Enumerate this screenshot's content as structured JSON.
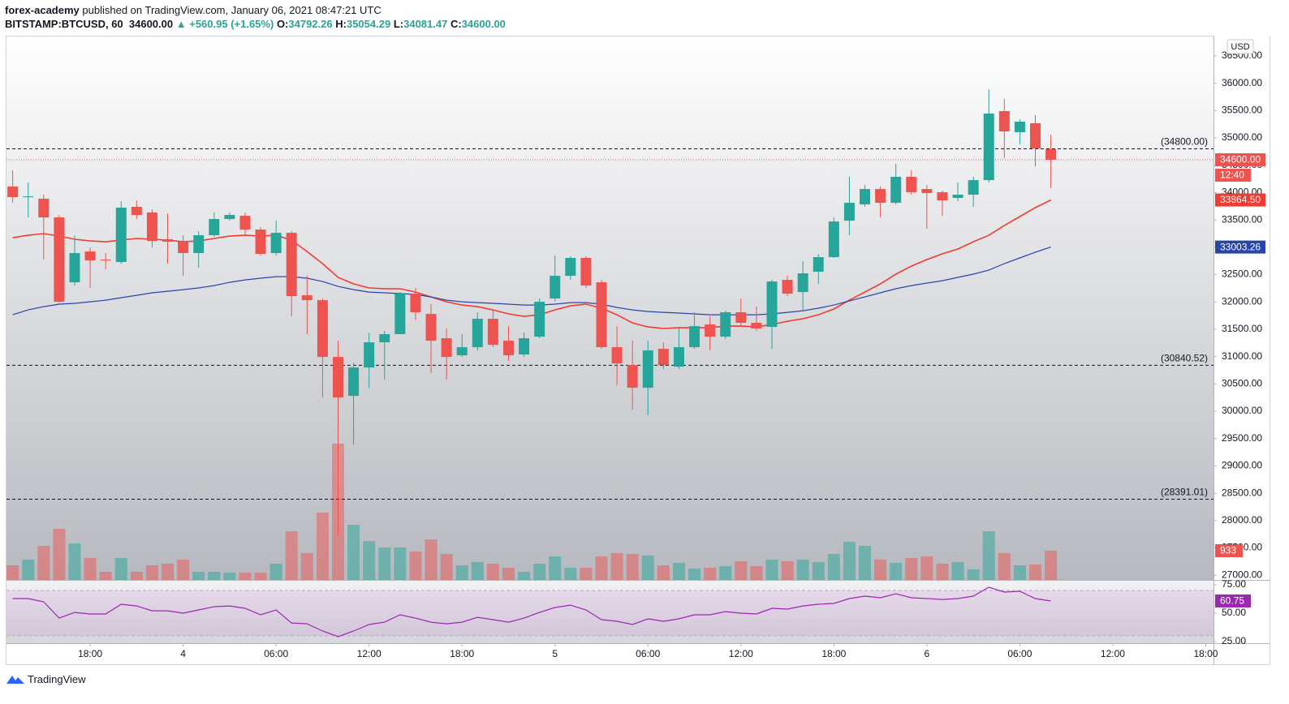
{
  "header": {
    "author": "forex-academy",
    "published": "published on TradingView.com, January 06, 2021 08:47:21 UTC"
  },
  "footer": {
    "brand": "TradingView"
  },
  "chart_data": {
    "type": "candlestick",
    "symbol": "BITSTAMP:BTCUSD, 60",
    "legend": {
      "last": "34600.00",
      "change": "▲ +560.95 (+1.65%)",
      "items": [
        {
          "key": "O:",
          "value": "34792.26"
        },
        {
          "key": "H:",
          "value": "35054.29"
        },
        {
          "key": "L:",
          "value": "34081.47"
        },
        {
          "key": "C:",
          "value": "34600.00"
        }
      ]
    },
    "currency": "USD",
    "up_color": "#26a69a",
    "down_color": "#ef5350",
    "xlim": [
      -0.4,
      77.5
    ],
    "xticks": [
      {
        "value": 5,
        "label": "18:00"
      },
      {
        "value": 11,
        "label": "4"
      },
      {
        "value": 17,
        "label": "06:00"
      },
      {
        "value": 23,
        "label": "12:00"
      },
      {
        "value": 29,
        "label": "18:00"
      },
      {
        "value": 35,
        "label": "5"
      },
      {
        "value": 41,
        "label": "06:00"
      },
      {
        "value": 47,
        "label": "12:00"
      },
      {
        "value": 53,
        "label": "18:00"
      },
      {
        "value": 59,
        "label": "6"
      },
      {
        "value": 65,
        "label": "06:00"
      },
      {
        "value": 71,
        "label": "12:00"
      },
      {
        "value": 77,
        "label": "18:00"
      }
    ],
    "ylim": [
      26914,
      36855
    ],
    "yticks": [
      {
        "value": 27000,
        "label": "27000.00"
      },
      {
        "value": 27500,
        "label": "27500.00"
      },
      {
        "value": 28000,
        "label": "28000.00"
      },
      {
        "value": 28500,
        "label": "28500.00"
      },
      {
        "value": 29000,
        "label": "29000.00"
      },
      {
        "value": 29500,
        "label": "29500.00"
      },
      {
        "value": 30000,
        "label": "30000.00"
      },
      {
        "value": 30500,
        "label": "30500.00"
      },
      {
        "value": 31000,
        "label": "31000.00"
      },
      {
        "value": 31500,
        "label": "31500.00"
      },
      {
        "value": 32000,
        "label": "32000.00"
      },
      {
        "value": 32500,
        "label": "32500.00"
      },
      {
        "value": 33000,
        "label": "33000.00"
      },
      {
        "value": 33500,
        "label": "33500.00"
      },
      {
        "value": 34000,
        "label": "34000.00"
      },
      {
        "value": 34500,
        "label": "34500.00"
      },
      {
        "value": 35000,
        "label": "35000.00"
      },
      {
        "value": 35500,
        "label": "35500.00"
      },
      {
        "value": 36000,
        "label": "36000.00"
      },
      {
        "value": 36500,
        "label": "36500.00"
      }
    ],
    "open": [
      34110,
      33920,
      33887,
      33546,
      32358,
      32922,
      32774,
      32730,
      33739,
      33635,
      33145,
      33100,
      32893,
      33219,
      33516,
      33575,
      33323,
      32893,
      33264,
      32121,
      32032,
      30993,
      30281,
      30800,
      31260,
      31409,
      32151,
      31780,
      31335,
      31023,
      31171,
      31691,
      31290,
      31038,
      31364,
      32062,
      32477,
      32804,
      32358,
      31171,
      30845,
      30429,
      31142,
      30815,
      31171,
      31587,
      31364,
      31810,
      31617,
      31542,
      32403,
      32180,
      32552,
      32819,
      33486,
      33783,
      34065,
      33813,
      34288,
      34065,
      34006,
      33902,
      33961,
      34228,
      35490,
      35104,
      35267,
      34792.26
    ],
    "high": [
      34407,
      34180,
      33961,
      33590,
      33219,
      32997,
      32893,
      33842,
      33857,
      33694,
      33620,
      33219,
      33293,
      33635,
      33635,
      33635,
      33367,
      33486,
      33293,
      32477,
      32062,
      31290,
      30889,
      31438,
      31468,
      32180,
      32255,
      31958,
      31513,
      31409,
      31810,
      31854,
      31557,
      31438,
      32062,
      32848,
      32834,
      32834,
      32403,
      31557,
      31290,
      31290,
      31260,
      31513,
      31810,
      31735,
      31839,
      32062,
      31913,
      32403,
      32477,
      32744,
      32878,
      33546,
      34288,
      34139,
      34110,
      34525,
      34407,
      34139,
      34036,
      34184,
      34288,
      35890,
      35712,
      35341,
      35416,
      35054.29
    ],
    "low": [
      33813,
      33545,
      32774,
      31987,
      32299,
      32255,
      32596,
      32700,
      33516,
      32997,
      32700,
      32477,
      32626,
      33190,
      33486,
      33219,
      32848,
      32848,
      31735,
      31409,
      30251,
      27728,
      29390,
      30429,
      30578,
      31409,
      31661,
      30696,
      30578,
      30993,
      31112,
      31171,
      30919,
      30993,
      31335,
      32002,
      32403,
      32255,
      31142,
      30474,
      30029,
      29925,
      30771,
      30771,
      31142,
      31112,
      31320,
      31557,
      31468,
      31142,
      32106,
      31854,
      32329,
      32804,
      33219,
      33739,
      33546,
      33783,
      33961,
      33338,
      33575,
      33842,
      33739,
      34184,
      34629,
      34881,
      34481,
      34081.47
    ],
    "close": [
      33917,
      33930,
      33546,
      32002,
      32893,
      32759,
      32760,
      33724,
      33590,
      33115,
      33100,
      32893,
      33219,
      33516,
      33590,
      33323,
      32878,
      33264,
      32106,
      32032,
      30993,
      30251,
      30800,
      31260,
      31409,
      32151,
      31810,
      31290,
      30993,
      31171,
      31691,
      31216,
      31023,
      31335,
      32002,
      32477,
      32804,
      32299,
      31171,
      30874,
      30429,
      31112,
      30845,
      31171,
      31557,
      31364,
      31810,
      31617,
      31513,
      32373,
      32151,
      32522,
      32819,
      33471,
      33813,
      34065,
      33813,
      34288,
      34006,
      33991,
      33857,
      33961,
      34228,
      35445,
      35119,
      35297,
      34807,
      34600
    ],
    "last_price": {
      "value": 34600,
      "label": "34600.00",
      "countdown": "12:40",
      "color": "#ef5350"
    },
    "levels": [
      {
        "value": 34800,
        "label": "(34800.00)"
      },
      {
        "value": 30840.52,
        "label": "(30840.52)"
      },
      {
        "value": 28391.01,
        "label": "(28391.01)"
      }
    ],
    "ma_lines": [
      {
        "color": "#f23b30",
        "last_label": "33864.50",
        "values": [
          33175,
          33219,
          33249,
          33204,
          33145,
          33115,
          33100,
          33130,
          33160,
          33145,
          33130,
          33100,
          33115,
          33160,
          33204,
          33219,
          33204,
          33219,
          33130,
          32922,
          32700,
          32448,
          32329,
          32255,
          32240,
          32240,
          32180,
          32091,
          32002,
          31943,
          31913,
          31854,
          31780,
          31735,
          31765,
          31854,
          31928,
          31958,
          31884,
          31765,
          31616,
          31542,
          31513,
          31527,
          31527,
          31527,
          31557,
          31557,
          31542,
          31587,
          31646,
          31691,
          31765,
          31869,
          32032,
          32180,
          32329,
          32507,
          32655,
          32774,
          32878,
          32967,
          33100,
          33219,
          33397,
          33561,
          33724,
          33864.5
        ]
      },
      {
        "color": "#2a45a8",
        "last_label": "33003.26",
        "values": [
          31765,
          31854,
          31913,
          31958,
          31973,
          32002,
          32032,
          32077,
          32121,
          32166,
          32195,
          32225,
          32255,
          32299,
          32358,
          32403,
          32433,
          32462,
          32462,
          32433,
          32373,
          32284,
          32225,
          32180,
          32166,
          32151,
          32136,
          32091,
          32032,
          32002,
          31987,
          31973,
          31958,
          31943,
          31943,
          31958,
          31987,
          31987,
          31958,
          31898,
          31854,
          31824,
          31809,
          31795,
          31780,
          31765,
          31765,
          31765,
          31765,
          31780,
          31809,
          31839,
          31884,
          31943,
          32017,
          32091,
          32166,
          32240,
          32299,
          32344,
          32388,
          32448,
          32507,
          32581,
          32700,
          32804,
          32908,
          33003.26
        ]
      }
    ],
    "volume": {
      "ylim": [
        0,
        17360
      ],
      "values": [
        466,
        648,
        1088,
        1632,
        1166,
        699,
        259,
        699,
        259,
        466,
        518,
        648,
        259,
        259,
        233,
        233,
        233,
        518,
        1554,
        855,
        2150,
        4352,
        1761,
        1243,
        1036,
        1036,
        907,
        1295,
        829,
        466,
        570,
        518,
        389,
        259,
        518,
        751,
        389,
        389,
        751,
        855,
        829,
        777,
        466,
        544,
        363,
        389,
        440,
        596,
        440,
        648,
        596,
        648,
        570,
        829,
        1218,
        1088,
        648,
        544,
        699,
        751,
        518,
        570,
        337,
        1554,
        855,
        466,
        492,
        933
      ]
    },
    "rsi": {
      "color": "#9c27b0",
      "ylim": [
        23.6,
        79.3
      ],
      "band": [
        30,
        70
      ],
      "yticks": [
        {
          "value": 75,
          "label": "75.00"
        },
        {
          "value": 50,
          "label": "50.00"
        },
        {
          "value": 25,
          "label": "25.00"
        }
      ],
      "values": [
        62.9,
        62.9,
        60,
        45.7,
        50.7,
        49.3,
        49.3,
        57.9,
        56.4,
        52.1,
        52.1,
        50,
        52.9,
        55.7,
        56.4,
        54.3,
        48.6,
        52.9,
        41.4,
        40.7,
        34.3,
        29.3,
        34.3,
        40,
        42.1,
        48.6,
        45.7,
        42.1,
        40.7,
        42.1,
        46.4,
        44.3,
        42.1,
        45.7,
        50.7,
        55,
        57.1,
        52.9,
        44.3,
        42.9,
        40,
        45,
        42.9,
        45,
        48.6,
        48.6,
        51.4,
        50,
        49.3,
        54.3,
        53.6,
        56.4,
        57.9,
        58.6,
        62.9,
        65,
        63.6,
        67.1,
        63.6,
        62.9,
        62.1,
        62.9,
        65,
        72.9,
        68.6,
        69.3,
        62.9,
        60.75
      ]
    }
  }
}
